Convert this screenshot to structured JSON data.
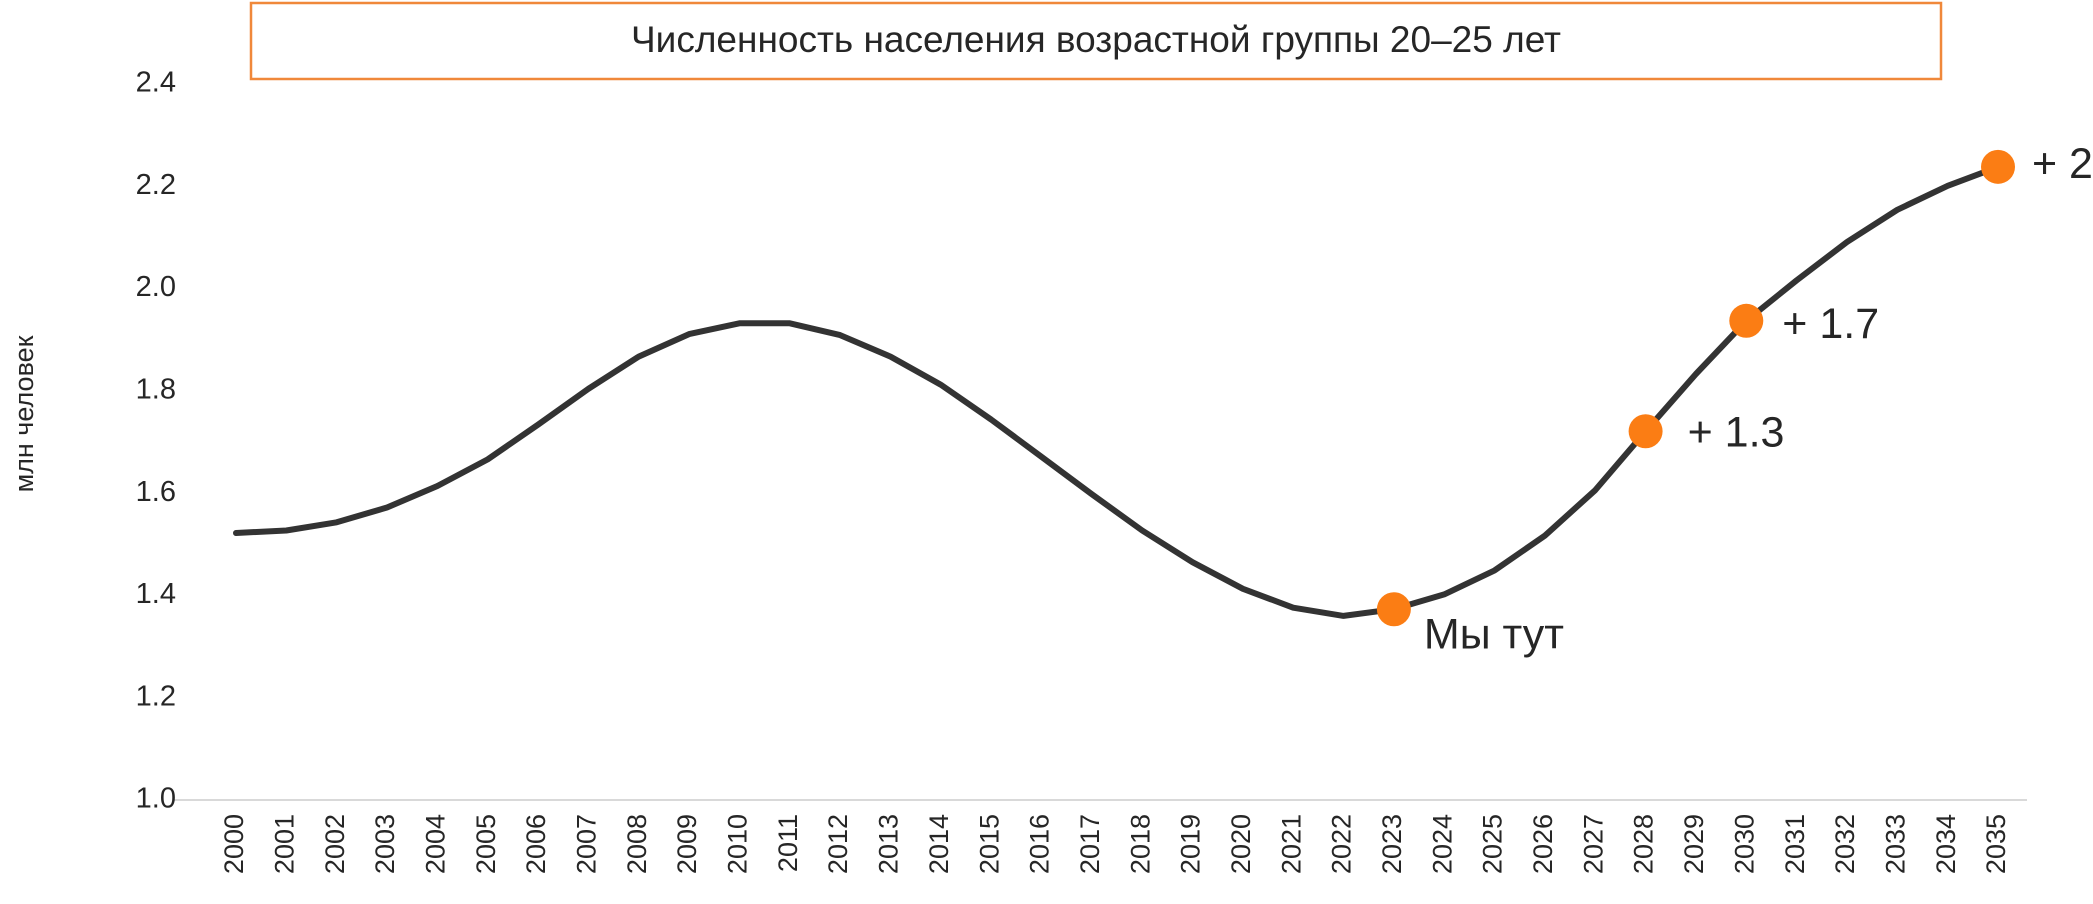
{
  "chart_data": {
    "type": "line",
    "title": "Численность населения возрастной группы 20–25 лет",
    "y_label": "млн человек",
    "categories": [
      "2000",
      "2001",
      "2002",
      "2003",
      "2004",
      "2005",
      "2006",
      "2007",
      "2008",
      "2009",
      "2010",
      "2011",
      "2012",
      "2013",
      "2014",
      "2015",
      "2016",
      "2017",
      "2018",
      "2019",
      "2020",
      "2021",
      "2022",
      "2023",
      "2024",
      "2025",
      "2026",
      "2027",
      "2028",
      "2029",
      "2030",
      "2031",
      "2032",
      "2033",
      "2034",
      "2035"
    ],
    "series": [
      {
        "name": "Численность населения",
        "color": "#333333",
        "values": [
          1.522,
          1.527,
          1.543,
          1.572,
          1.614,
          1.666,
          1.734,
          1.804,
          1.867,
          1.911,
          1.932,
          1.932,
          1.909,
          1.867,
          1.812,
          1.744,
          1.671,
          1.598,
          1.527,
          1.465,
          1.413,
          1.376,
          1.36,
          1.373,
          1.402,
          1.449,
          1.517,
          1.606,
          1.721,
          1.833,
          1.937,
          2.016,
          2.091,
          2.154,
          2.201,
          2.238
        ]
      }
    ],
    "ylim": [
      1.0,
      2.4
    ],
    "yticks": [
      {
        "value": 1.0,
        "label": "1.0"
      },
      1.2,
      1.4,
      1.6,
      1.8,
      {
        "value": 2.0,
        "label": "2.0"
      },
      2.2,
      2.4
    ],
    "marker_color": "#fb7d14",
    "annotations": [
      {
        "category": "2023",
        "text": "Мы тут"
      },
      {
        "category": "2028",
        "text": "+ 1.3"
      },
      {
        "category": "2030",
        "text": "+ 1.7"
      },
      {
        "category": "2035",
        "text": "+ 2"
      }
    ],
    "grid": false
  }
}
